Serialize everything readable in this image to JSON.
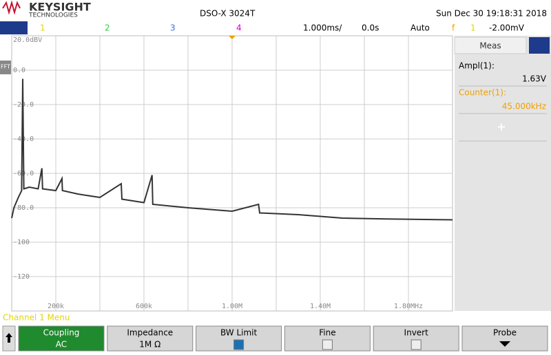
{
  "header": {
    "brand": "KEYSIGHT",
    "brand_sub": "TECHNOLOGIES",
    "model": "DSO-X 3024T",
    "datetime": "Sun Dec 30 19:18:31 2018"
  },
  "status": {
    "channels": [
      "1",
      "2",
      "3",
      "4"
    ],
    "timebase": "1.000ms/",
    "delay": "0.0s",
    "trigger_mode": "Auto",
    "trigger_source": "1",
    "trigger_level": "-2.00mV"
  },
  "plot": {
    "marker": "FFT",
    "y_labels": [
      "20.0dBV",
      "0.0",
      "-20.0",
      "-40.0",
      "-60.0",
      "-80.0",
      "-100",
      "-120"
    ],
    "x_labels": [
      "200k",
      "600k",
      "1.00M",
      "1.40M",
      "1.80MHz"
    ],
    "xlim": [
      0,
      2000
    ],
    "ylim": [
      -140,
      20
    ],
    "trace": {
      "x": [
        0,
        10,
        20,
        30,
        45,
        50,
        55,
        80,
        120,
        137,
        140,
        200,
        228,
        230,
        300,
        400,
        497,
        500,
        600,
        637,
        640,
        800,
        1000,
        1120,
        1125,
        1300,
        1500,
        1700,
        2000
      ],
      "y": [
        -86,
        -80,
        -77,
        -74,
        -70,
        -5,
        -69,
        -68,
        -69,
        -57,
        -69,
        -70,
        -63,
        -70,
        -72,
        -74,
        -66,
        -75,
        -77,
        -61,
        -78,
        -80,
        -82,
        -78,
        -83,
        -84,
        -86,
        -86.5,
        -87
      ]
    }
  },
  "sidebar": {
    "tab": "Meas",
    "ampl_label": "Ampl(1):",
    "ampl_value": "1.63V",
    "counter_label": "Counter(1):",
    "counter_value": "45.000kHz",
    "add": "+"
  },
  "menu": {
    "title": "Channel 1 Menu",
    "softkeys": [
      {
        "label": "Coupling",
        "value": "AC"
      },
      {
        "label": "Impedance",
        "value": "1M Ω"
      },
      {
        "label": "BW Limit"
      },
      {
        "label": "Fine"
      },
      {
        "label": "Invert"
      },
      {
        "label": "Probe"
      }
    ]
  }
}
